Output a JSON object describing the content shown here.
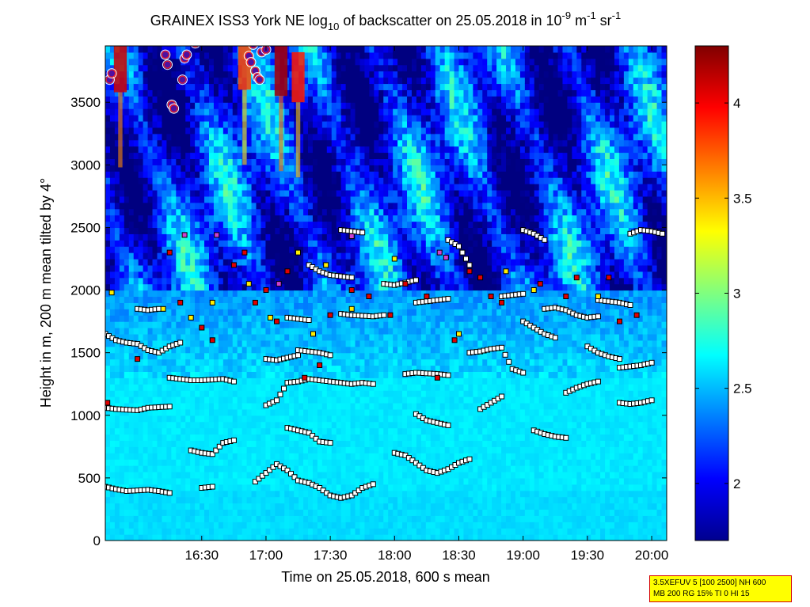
{
  "chart_data": {
    "type": "heatmap",
    "title": {
      "part1": "GRAINEX ISS3 York NE log",
      "sub1": "10",
      "part2": " of backscatter on 25.05.2018 in 10",
      "sup1": "-9",
      "part3": " m",
      "sup2": "-1",
      "part4": " sr",
      "sup3": "-1"
    },
    "xlabel": "Time on 25.05.2018, 600 s mean",
    "ylabel": "Height in m, 200 m mean tilted by 4°",
    "x_range_minutes": [
      945,
      1207
    ],
    "x_ticks": [
      {
        "label": "16:30",
        "minutes": 990
      },
      {
        "label": "17:00",
        "minutes": 1020
      },
      {
        "label": "17:30",
        "minutes": 1050
      },
      {
        "label": "18:00",
        "minutes": 1080
      },
      {
        "label": "18:30",
        "minutes": 1110
      },
      {
        "label": "19:00",
        "minutes": 1140
      },
      {
        "label": "19:30",
        "minutes": 1170
      },
      {
        "label": "20:00",
        "minutes": 1200
      }
    ],
    "ylim": [
      0,
      3950
    ],
    "y_ticks": [
      0,
      500,
      1000,
      1500,
      2000,
      2500,
      3000,
      3500
    ],
    "colorbar": {
      "range": [
        1.7,
        4.3
      ],
      "ticks": [
        "2",
        "2.5",
        "3",
        "3.5",
        "4"
      ],
      "colormap": "jet"
    },
    "cloud_bursts": [
      {
        "minutes": 952,
        "height": 3780,
        "intensity": 4.1
      },
      {
        "minutes": 1010,
        "height": 3800,
        "intensity": 3.8
      },
      {
        "minutes": 1027,
        "height": 3750,
        "intensity": 4.2
      },
      {
        "minutes": 1035,
        "height": 3700,
        "intensity": 3.9
      }
    ],
    "layer_series": [
      {
        "minutes": [
          945,
          950,
          955,
          960,
          965,
          970,
          975,
          980,
          985,
          990,
          995,
          1000,
          1005,
          1010,
          1015,
          1020,
          1025,
          1030,
          1035,
          1040,
          1045,
          1050,
          1055,
          1060,
          1065,
          1070
        ],
        "heights": [
          430,
          410,
          395,
          400,
          405,
          395,
          380,
          null,
          null,
          420,
          430,
          null,
          null,
          null,
          470,
          540,
          610,
          560,
          480,
          460,
          420,
          360,
          340,
          360,
          420,
          450
        ]
      },
      {
        "minutes": [
          1075,
          1080,
          1085,
          1090,
          1095,
          1100,
          1105,
          1110,
          1115,
          1120
        ],
        "heights": [
          null,
          700,
          680,
          620,
          560,
          540,
          570,
          620,
          650,
          null
        ]
      },
      {
        "minutes": [
          945,
          950,
          955,
          960,
          965,
          970,
          975,
          980,
          985
        ],
        "heights": [
          1060,
          1050,
          1045,
          1040,
          1060,
          1065,
          1070,
          null,
          null
        ]
      },
      {
        "minutes": [
          985,
          990,
          995,
          1000,
          1005
        ],
        "heights": [
          720,
          700,
          690,
          780,
          800
        ]
      },
      {
        "minutes": [
          1030,
          1035,
          1040,
          1045,
          1050
        ],
        "heights": [
          900,
          880,
          860,
          790,
          780
        ]
      },
      {
        "minutes": [
          1090,
          1095,
          1100,
          1105
        ],
        "heights": [
          1010,
          960,
          940,
          920
        ]
      },
      {
        "minutes": [
          1120,
          1125,
          1130
        ],
        "heights": [
          1050,
          1100,
          1150
        ]
      },
      {
        "minutes": [
          1145,
          1150,
          1155,
          1160
        ],
        "heights": [
          880,
          850,
          830,
          820
        ]
      },
      {
        "minutes": [
          1160,
          1165,
          1170,
          1175
        ],
        "heights": [
          1180,
          1220,
          1250,
          1270
        ]
      },
      {
        "minutes": [
          1185,
          1190,
          1195,
          1200
        ],
        "heights": [
          1100,
          1090,
          1100,
          1120
        ]
      },
      {
        "minutes": [
          975,
          980,
          985,
          990,
          995,
          1000,
          1005,
          1010,
          1015,
          1020,
          1025,
          1030,
          1035,
          1040,
          1045,
          1050,
          1055,
          1060,
          1065,
          1070
        ],
        "heights": [
          1300,
          1290,
          1280,
          1280,
          1285,
          1290,
          1270,
          null,
          null,
          1080,
          1120,
          1260,
          1270,
          1290,
          1280,
          1270,
          1260,
          1250,
          1260,
          1250
        ]
      },
      {
        "minutes": [
          1085,
          1090,
          1095,
          1100,
          1105
        ],
        "heights": [
          1330,
          1340,
          1335,
          1330,
          1320
        ]
      },
      {
        "minutes": [
          1115,
          1120,
          1125,
          1130,
          1135,
          1140
        ],
        "heights": [
          1500,
          1510,
          1530,
          1540,
          1370,
          1340
        ]
      },
      {
        "minutes": [
          1185,
          1190,
          1195,
          1200
        ],
        "heights": [
          1380,
          1390,
          1400,
          1420
        ]
      },
      {
        "minutes": [
          945,
          950,
          955,
          960,
          965,
          970,
          975,
          980
        ],
        "heights": [
          1650,
          1600,
          1580,
          1570,
          1520,
          1500,
          1550,
          1580
        ]
      },
      {
        "minutes": [
          1020,
          1025,
          1030,
          1035
        ],
        "heights": [
          1450,
          1440,
          1460,
          1480
        ]
      },
      {
        "minutes": [
          1035,
          1040,
          1045,
          1050
        ],
        "heights": [
          1520,
          1510,
          1500,
          1480
        ]
      },
      {
        "minutes": [
          1140,
          1145,
          1150,
          1155
        ],
        "heights": [
          1750,
          1700,
          1650,
          1620
        ]
      },
      {
        "minutes": [
          1170,
          1175,
          1180,
          1185
        ],
        "heights": [
          1550,
          1500,
          1470,
          1450
        ]
      },
      {
        "minutes": [
          960,
          965,
          970
        ],
        "heights": [
          1850,
          1840,
          1850
        ]
      },
      {
        "minutes": [
          1030,
          1035,
          1040
        ],
        "heights": [
          1780,
          1770,
          1760
        ]
      },
      {
        "minutes": [
          1055,
          1060,
          1065,
          1070,
          1075
        ],
        "heights": [
          1810,
          1800,
          1795,
          1790,
          1800
        ]
      },
      {
        "minutes": [
          1090,
          1095,
          1100,
          1105
        ],
        "heights": [
          1900,
          1910,
          1920,
          1930
        ]
      },
      {
        "minutes": [
          1150,
          1155,
          1160,
          1165,
          1170,
          1175
        ],
        "heights": [
          1850,
          1860,
          1840,
          1800,
          1780,
          1790
        ]
      },
      {
        "minutes": [
          1175,
          1180,
          1185,
          1190
        ],
        "heights": [
          1920,
          1910,
          1900,
          1880
        ]
      },
      {
        "minutes": [
          1040,
          1045,
          1050,
          1055,
          1060
        ],
        "heights": [
          2200,
          2150,
          2120,
          2110,
          2100
        ]
      },
      {
        "minutes": [
          1075,
          1080,
          1085,
          1090
        ],
        "heights": [
          2050,
          2040,
          2060,
          2080
        ]
      },
      {
        "minutes": [
          1105,
          1110,
          1115
        ],
        "heights": [
          2400,
          2350,
          2200
        ]
      },
      {
        "minutes": [
          1130,
          1135,
          1140
        ],
        "heights": [
          1950,
          1960,
          1970
        ]
      },
      {
        "minutes": [
          1190,
          1195,
          1200,
          1205
        ],
        "heights": [
          2450,
          2480,
          2470,
          2450
        ]
      },
      {
        "minutes": [
          1055,
          1060,
          1065
        ],
        "heights": [
          2480,
          2470,
          2460
        ]
      },
      {
        "minutes": [
          1140,
          1145,
          1150
        ],
        "heights": [
          2480,
          2450,
          2400
        ]
      }
    ],
    "red_markers": [
      {
        "minutes": 975,
        "height": 2300
      },
      {
        "minutes": 980,
        "height": 1900
      },
      {
        "minutes": 990,
        "height": 1700
      },
      {
        "minutes": 995,
        "height": 1600
      },
      {
        "minutes": 1005,
        "height": 2200
      },
      {
        "minutes": 1010,
        "height": 2300
      },
      {
        "minutes": 1015,
        "height": 1900
      },
      {
        "minutes": 1020,
        "height": 2000
      },
      {
        "minutes": 1025,
        "height": 1750
      },
      {
        "minutes": 1030,
        "height": 2150
      },
      {
        "minutes": 1038,
        "height": 1300
      },
      {
        "minutes": 1045,
        "height": 1400
      },
      {
        "minutes": 1050,
        "height": 1800
      },
      {
        "minutes": 1060,
        "height": 2000
      },
      {
        "minutes": 1068,
        "height": 1950
      },
      {
        "minutes": 1078,
        "height": 1800
      },
      {
        "minutes": 1085,
        "height": 2050
      },
      {
        "minutes": 1095,
        "height": 1950
      },
      {
        "minutes": 1100,
        "height": 1300
      },
      {
        "minutes": 1108,
        "height": 1600
      },
      {
        "minutes": 1115,
        "height": 2150
      },
      {
        "minutes": 1120,
        "height": 2100
      },
      {
        "minutes": 1125,
        "height": 1950
      },
      {
        "minutes": 1130,
        "height": 1900
      },
      {
        "minutes": 1148,
        "height": 2050
      },
      {
        "minutes": 1160,
        "height": 1950
      },
      {
        "minutes": 1165,
        "height": 2100
      },
      {
        "minutes": 1180,
        "height": 2100
      },
      {
        "minutes": 1185,
        "height": 1750
      },
      {
        "minutes": 1193,
        "height": 1800
      },
      {
        "minutes": 946,
        "height": 1100
      },
      {
        "minutes": 960,
        "height": 1450
      }
    ],
    "yellow_markers": [
      {
        "minutes": 948,
        "height": 1980
      },
      {
        "minutes": 972,
        "height": 1850
      },
      {
        "minutes": 985,
        "height": 1780
      },
      {
        "minutes": 995,
        "height": 1900
      },
      {
        "minutes": 1012,
        "height": 2050
      },
      {
        "minutes": 1022,
        "height": 1780
      },
      {
        "minutes": 1035,
        "height": 2300
      },
      {
        "minutes": 1042,
        "height": 1650
      },
      {
        "minutes": 1048,
        "height": 2200
      },
      {
        "minutes": 1060,
        "height": 1850
      },
      {
        "minutes": 1080,
        "height": 2250
      },
      {
        "minutes": 1110,
        "height": 1650
      },
      {
        "minutes": 1132,
        "height": 2150
      },
      {
        "minutes": 1145,
        "height": 2000
      },
      {
        "minutes": 1175,
        "height": 1950
      }
    ],
    "magenta_markers": [
      {
        "minutes": 982,
        "height": 2440
      },
      {
        "minutes": 997,
        "height": 2440
      },
      {
        "minutes": 1026,
        "height": 2050
      },
      {
        "minutes": 1060,
        "height": 2430
      },
      {
        "minutes": 1101,
        "height": 2300
      },
      {
        "minutes": 1104,
        "height": 2260
      }
    ],
    "cloud_base_markers": [
      {
        "minutes": 947,
        "height": 3680
      },
      {
        "minutes": 948,
        "height": 3730
      },
      {
        "minutes": 973,
        "height": 3880
      },
      {
        "minutes": 974,
        "height": 3800
      },
      {
        "minutes": 976,
        "height": 3480
      },
      {
        "minutes": 977,
        "height": 3450
      },
      {
        "minutes": 981,
        "height": 3680
      },
      {
        "minutes": 982,
        "height": 3850
      },
      {
        "minutes": 983,
        "height": 3880
      },
      {
        "minutes": 987,
        "height": 3970
      },
      {
        "minutes": 1012,
        "height": 3870
      },
      {
        "minutes": 1013,
        "height": 3820
      },
      {
        "minutes": 1014,
        "height": 3960
      },
      {
        "minutes": 1015,
        "height": 3750
      },
      {
        "minutes": 1016,
        "height": 3700
      },
      {
        "minutes": 1017,
        "height": 3680
      },
      {
        "minutes": 1018,
        "height": 3900
      },
      {
        "minutes": 1020,
        "height": 3920
      }
    ]
  },
  "info_box": {
    "line1": "3.5XEFUV 5 [100 2500] NH 600",
    "line2": "MB 200 RG 15% TI 0 HI 15"
  },
  "colors": {
    "marker_outline": "#000000",
    "marker_fill_white": "#ffffff",
    "marker_fill_red": "#e00000",
    "marker_fill_yellow": "#ffee00",
    "marker_fill_magenta": "#d040d0",
    "cloud_base_ring": "#ff2020",
    "cloud_base_fill": "#5010a0"
  }
}
